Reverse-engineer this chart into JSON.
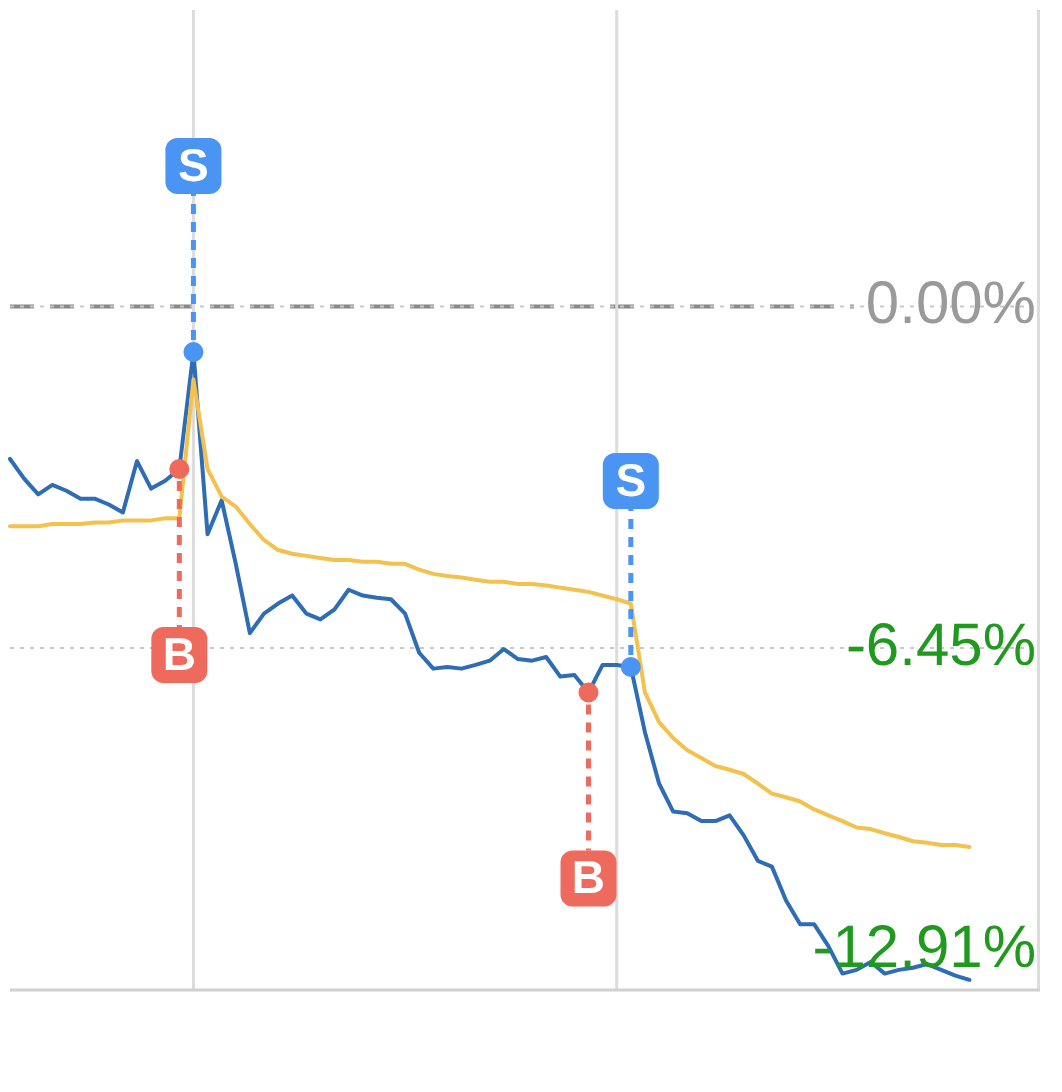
{
  "chart_data": {
    "type": "line",
    "categories": [
      null,
      null,
      null,
      null,
      null,
      null,
      null,
      null,
      null,
      null,
      null,
      null,
      null,
      null,
      null,
      null,
      null,
      null,
      null,
      null,
      null,
      null,
      null,
      null,
      null,
      null,
      null,
      null,
      null,
      null,
      null,
      null,
      null,
      null,
      null,
      null,
      null,
      null,
      null,
      null,
      null,
      null,
      null,
      null,
      null,
      null,
      null,
      null,
      null,
      null,
      null,
      null,
      null,
      null,
      null,
      null,
      null,
      null,
      null,
      null,
      null,
      null,
      null,
      null,
      null,
      null,
      null,
      null,
      null,
      null,
      null,
      null,
      null,
      null
    ],
    "series": [
      {
        "color": "#2e6db4",
        "values": [
          -2.88,
          -3.25,
          -3.55,
          -3.37,
          -3.48,
          -3.63,
          -3.63,
          -3.74,
          -3.89,
          -2.92,
          -3.44,
          -3.29,
          -3.07,
          -0.86,
          -4.3,
          -3.66,
          -4.86,
          -6.17,
          -5.8,
          -5.61,
          -5.46,
          -5.8,
          -5.91,
          -5.72,
          -5.35,
          -5.46,
          -5.5,
          -5.53,
          -5.8,
          -6.54,
          -6.84,
          -6.81,
          -6.84,
          -6.77,
          -6.69,
          -6.47,
          -6.66,
          -6.69,
          -6.62,
          -6.99,
          -6.96,
          -7.29,
          -6.77,
          -6.77,
          -6.81,
          -8.04,
          -9.01,
          -9.54,
          -9.57,
          -9.72,
          -9.72,
          -9.61,
          -9.99,
          -10.47,
          -10.58,
          -11.22,
          -11.67,
          -11.67,
          -12.08,
          -12.6,
          -12.53,
          -12.38,
          -12.6,
          -12.53,
          -12.49,
          -12.42,
          -12.53,
          -12.64,
          -12.72,
          null,
          null,
          null,
          null,
          null
        ]
      },
      {
        "color": "#f2c14e",
        "values": [
          -4.15,
          -4.15,
          -4.15,
          -4.11,
          -4.11,
          -4.11,
          -4.08,
          -4.08,
          -4.04,
          -4.04,
          -4.04,
          -4.0,
          -4.0,
          -1.38,
          -3.07,
          -3.59,
          -3.78,
          -4.11,
          -4.41,
          -4.6,
          -4.67,
          -4.71,
          -4.75,
          -4.79,
          -4.79,
          -4.82,
          -4.82,
          -4.86,
          -4.86,
          -4.97,
          -5.05,
          -5.09,
          -5.12,
          -5.16,
          -5.2,
          -5.2,
          -5.24,
          -5.24,
          -5.27,
          -5.31,
          -5.35,
          -5.39,
          -5.46,
          -5.53,
          -5.61,
          -7.29,
          -7.85,
          -8.15,
          -8.38,
          -8.53,
          -8.68,
          -8.75,
          -8.83,
          -9.01,
          -9.2,
          -9.27,
          -9.35,
          -9.5,
          -9.61,
          -9.72,
          -9.84,
          -9.87,
          -9.95,
          -10.02,
          -10.1,
          -10.13,
          -10.17,
          -10.17,
          -10.21,
          null,
          null,
          null,
          null,
          null
        ]
      },
      {
        "type": "scatter",
        "color": "#4a94f3",
        "values": [
          null,
          null,
          null,
          null,
          null,
          null,
          null,
          null,
          null,
          null,
          null,
          null,
          null,
          -0.86,
          null,
          null,
          null,
          null,
          null,
          null,
          null,
          null,
          null,
          null,
          null,
          null,
          null,
          null,
          null,
          null,
          null,
          null,
          null,
          null,
          null,
          null,
          null,
          null,
          null,
          null,
          null,
          null,
          null,
          null,
          -6.81,
          null,
          null,
          null,
          null,
          null,
          null,
          null,
          null,
          null,
          null,
          null,
          null,
          null,
          null,
          null,
          null,
          null,
          null,
          null,
          null,
          null,
          null,
          null,
          null,
          null,
          null,
          null,
          null,
          null
        ],
        "value_labels": [
          null,
          null,
          null,
          null,
          null,
          null,
          null,
          null,
          null,
          null,
          null,
          null,
          null,
          "S",
          null,
          null,
          null,
          null,
          null,
          null,
          null,
          null,
          null,
          null,
          null,
          null,
          null,
          null,
          null,
          null,
          null,
          null,
          null,
          null,
          null,
          null,
          null,
          null,
          null,
          null,
          null,
          null,
          null,
          null,
          "S",
          null,
          null,
          null,
          null,
          null,
          null,
          null,
          null,
          null,
          null,
          null,
          null,
          null,
          null,
          null,
          null,
          null,
          null,
          null,
          null,
          null,
          null,
          null,
          null,
          null,
          null,
          null,
          null,
          null
        ]
      },
      {
        "type": "scatter",
        "color": "#ee6a5c",
        "values": [
          null,
          null,
          null,
          null,
          null,
          null,
          null,
          null,
          null,
          null,
          null,
          null,
          -3.07,
          null,
          null,
          null,
          null,
          null,
          null,
          null,
          null,
          null,
          null,
          null,
          null,
          null,
          null,
          null,
          null,
          null,
          null,
          null,
          null,
          null,
          null,
          null,
          null,
          null,
          null,
          null,
          null,
          -7.29,
          null,
          null,
          null,
          null,
          null,
          null,
          null,
          null,
          null,
          null,
          null,
          null,
          null,
          null,
          null,
          null,
          null,
          null,
          null,
          null,
          null,
          null,
          null,
          null,
          null,
          null,
          null,
          null,
          null,
          null,
          null,
          null
        ],
        "value_labels": [
          null,
          null,
          null,
          null,
          null,
          null,
          null,
          null,
          null,
          null,
          null,
          null,
          "B",
          null,
          null,
          null,
          null,
          null,
          null,
          null,
          null,
          null,
          null,
          null,
          null,
          null,
          null,
          null,
          null,
          null,
          null,
          null,
          null,
          null,
          null,
          null,
          null,
          null,
          null,
          null,
          null,
          "B",
          null,
          null,
          null,
          null,
          null,
          null,
          null,
          null,
          null,
          null,
          null,
          null,
          null,
          null,
          null,
          null,
          null,
          null,
          null,
          null,
          null,
          null,
          null,
          null,
          null,
          null,
          null,
          null,
          null,
          null,
          null,
          null
        ]
      }
    ],
    "ylim": [
      -12.91,
      5.6
    ],
    "yticks": [
      {
        "value": 0,
        "label": "0.00%"
      },
      {
        "value": -6.45,
        "label": "-6.45%"
      },
      {
        "value": -12.91,
        "label": "-12.91%"
      }
    ],
    "ref_lines": [
      {
        "axis": "y",
        "value": 0,
        "color": "#888888",
        "line_style": "dashed"
      }
    ],
    "grid": true,
    "legend": false,
    "tick_labels": "y"
  }
}
